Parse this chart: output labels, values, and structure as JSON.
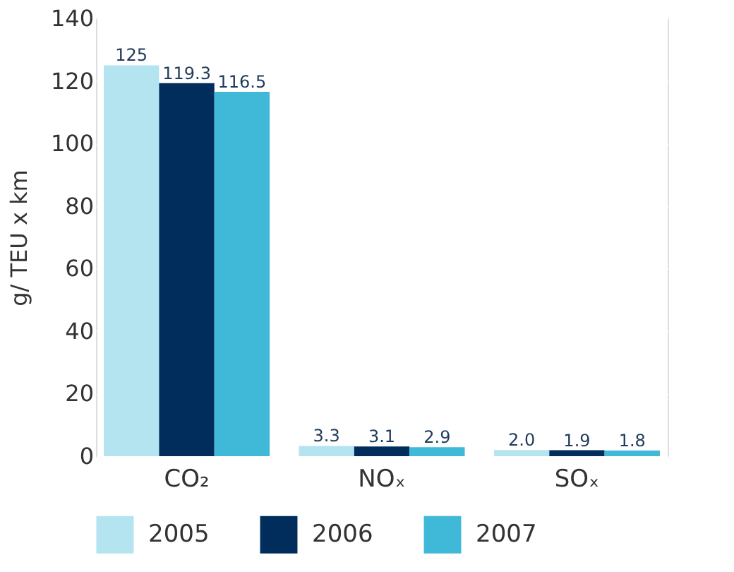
{
  "chart_data": {
    "type": "bar",
    "categories": [
      "CO₂",
      "NOₓ",
      "SOₓ"
    ],
    "ylabel": "g/ TEU x km",
    "ylim": [
      0,
      140
    ],
    "yticks": [
      0,
      20,
      40,
      60,
      80,
      100,
      120,
      140
    ],
    "grid": "y",
    "legend": "bottom",
    "series": [
      {
        "name": "2005",
        "color": "#b3e4f0",
        "values": [
          125,
          3.3,
          2.0
        ],
        "value_labels": [
          "125",
          "3.3",
          "2.0"
        ]
      },
      {
        "name": "2006",
        "color": "#002d5c",
        "values": [
          119.3,
          3.1,
          1.9
        ],
        "value_labels": [
          "119.3",
          "3.1",
          "1.9"
        ]
      },
      {
        "name": "2007",
        "color": "#40b9d8",
        "values": [
          116.5,
          2.9,
          1.8
        ],
        "value_labels": [
          "116.5",
          "2.9",
          "1.8"
        ]
      }
    ]
  }
}
